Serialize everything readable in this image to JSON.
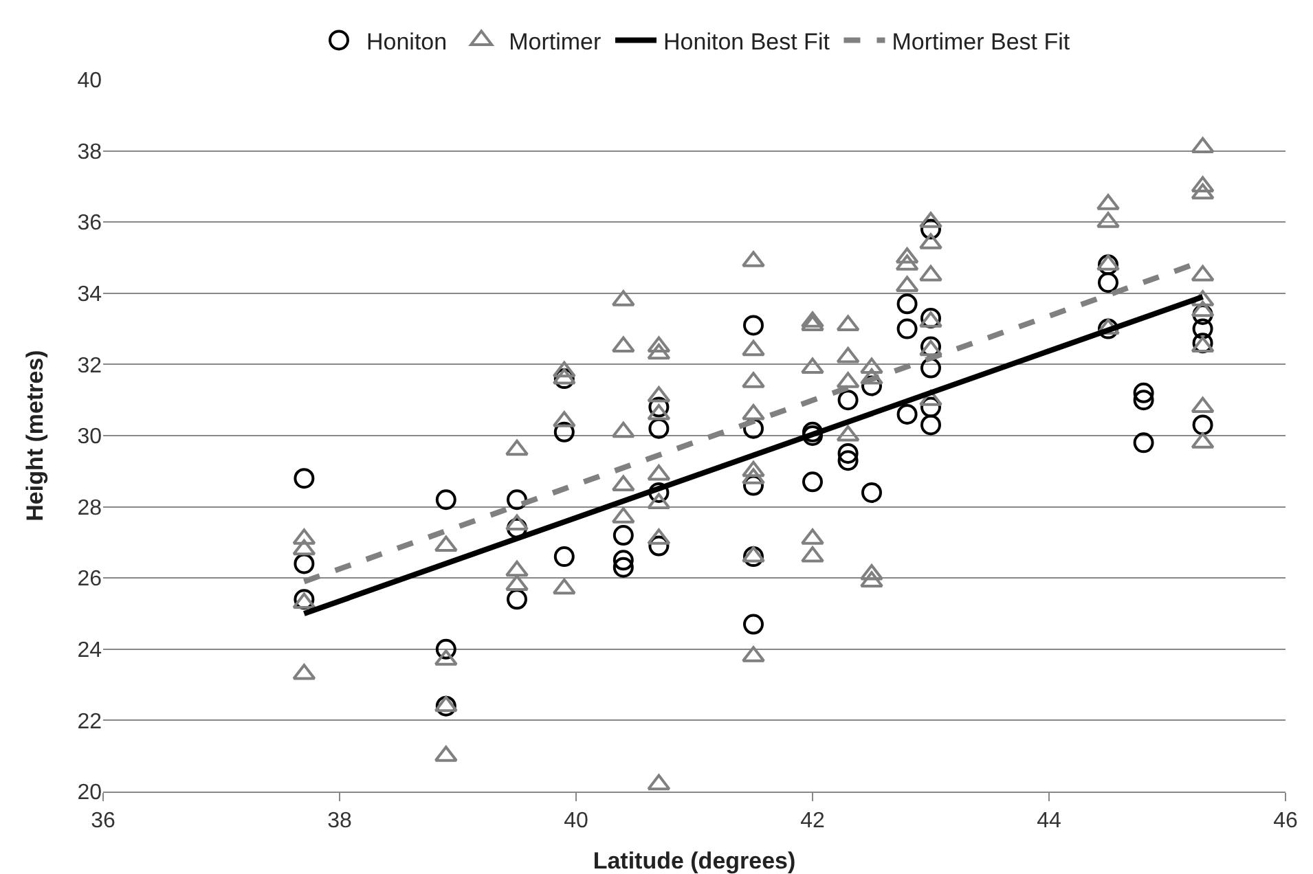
{
  "chart_data": {
    "type": "scatter",
    "xlabel": "Latitude (degrees)",
    "ylabel": "Height (metres)",
    "xlim": [
      36,
      46
    ],
    "xticks": [
      36,
      38,
      40,
      42,
      44,
      46
    ],
    "ylim": [
      20,
      40
    ],
    "yticks": [
      20,
      22,
      24,
      26,
      28,
      30,
      32,
      34,
      36,
      38,
      40
    ],
    "grid": "y",
    "legend": "top",
    "series": [
      {
        "name": "Honiton",
        "marker": "circle",
        "color": "#000000",
        "x": [
          37.7,
          37.7,
          37.7,
          38.9,
          38.9,
          38.9,
          39.5,
          39.5,
          39.5,
          39.9,
          39.9,
          39.9,
          40.4,
          40.4,
          40.4,
          40.7,
          40.7,
          40.7,
          40.7,
          41.5,
          41.5,
          41.5,
          41.5,
          41.5,
          42.0,
          42.0,
          42.0,
          42.3,
          42.3,
          42.3,
          42.5,
          42.5,
          42.8,
          42.8,
          42.8,
          43.0,
          43.0,
          43.0,
          43.0,
          43.0,
          43.0,
          44.5,
          44.5,
          44.5,
          44.8,
          44.8,
          44.8,
          45.3,
          45.3,
          45.3,
          45.3
        ],
        "values": [
          28.8,
          26.4,
          25.4,
          28.2,
          24.0,
          22.4,
          28.2,
          27.4,
          25.4,
          31.6,
          30.1,
          26.6,
          27.2,
          26.5,
          26.3,
          30.8,
          30.2,
          28.4,
          26.9,
          33.1,
          30.2,
          28.6,
          26.6,
          24.7,
          30.1,
          28.7,
          30.0,
          31.0,
          29.5,
          29.3,
          31.4,
          28.4,
          33.7,
          33.0,
          30.6,
          35.8,
          33.3,
          32.5,
          31.9,
          30.8,
          30.3,
          34.8,
          34.3,
          33.0,
          31.2,
          31.0,
          29.8,
          33.4,
          33.0,
          32.6,
          30.3
        ]
      },
      {
        "name": "Mortimer",
        "marker": "triangle",
        "color": "#808080",
        "x": [
          37.7,
          37.7,
          37.7,
          37.7,
          38.9,
          38.9,
          38.9,
          38.9,
          39.5,
          39.5,
          39.5,
          39.5,
          39.9,
          39.9,
          39.9,
          39.9,
          40.4,
          40.4,
          40.4,
          40.4,
          40.4,
          40.7,
          40.7,
          40.7,
          40.7,
          40.7,
          40.7,
          40.7,
          40.7,
          41.5,
          41.5,
          41.5,
          41.5,
          41.5,
          41.5,
          41.5,
          41.5,
          42.0,
          42.0,
          42.0,
          42.0,
          42.0,
          42.3,
          42.3,
          42.3,
          42.3,
          42.5,
          42.5,
          42.5,
          42.5,
          42.8,
          42.8,
          42.8,
          43.0,
          43.0,
          43.0,
          43.0,
          43.0,
          43.0,
          44.5,
          44.5,
          44.5,
          44.5,
          45.3,
          45.3,
          45.3,
          45.3,
          45.3,
          45.3,
          45.3,
          45.3,
          45.3
        ],
        "values": [
          27.1,
          26.8,
          25.3,
          23.3,
          26.9,
          23.7,
          22.4,
          21.0,
          29.6,
          27.5,
          26.2,
          25.8,
          31.8,
          31.6,
          30.4,
          25.7,
          33.8,
          32.5,
          30.1,
          28.6,
          27.7,
          32.5,
          32.3,
          31.1,
          30.6,
          28.9,
          28.1,
          27.1,
          20.2,
          34.9,
          32.4,
          31.5,
          30.6,
          29.0,
          28.8,
          26.6,
          23.8,
          33.2,
          33.1,
          31.9,
          27.1,
          26.6,
          33.1,
          32.2,
          31.5,
          30.0,
          31.9,
          31.6,
          26.1,
          25.9,
          35.0,
          34.8,
          34.2,
          36.0,
          35.4,
          34.5,
          33.2,
          32.4,
          31.0,
          36.5,
          36.0,
          34.8,
          33.0,
          38.1,
          37.0,
          36.8,
          34.5,
          33.8,
          33.5,
          32.5,
          30.8,
          29.8
        ]
      },
      {
        "name": "Honiton Best Fit",
        "type": "line",
        "line_style": "solid",
        "color": "#000000",
        "x": [
          37.7,
          45.3
        ],
        "values": [
          25.0,
          33.9
        ]
      },
      {
        "name": "Mortimer Best Fit",
        "type": "line",
        "line_style": "dashed",
        "color": "#808080",
        "x": [
          37.7,
          45.3
        ],
        "values": [
          25.9,
          34.9
        ]
      }
    ]
  }
}
